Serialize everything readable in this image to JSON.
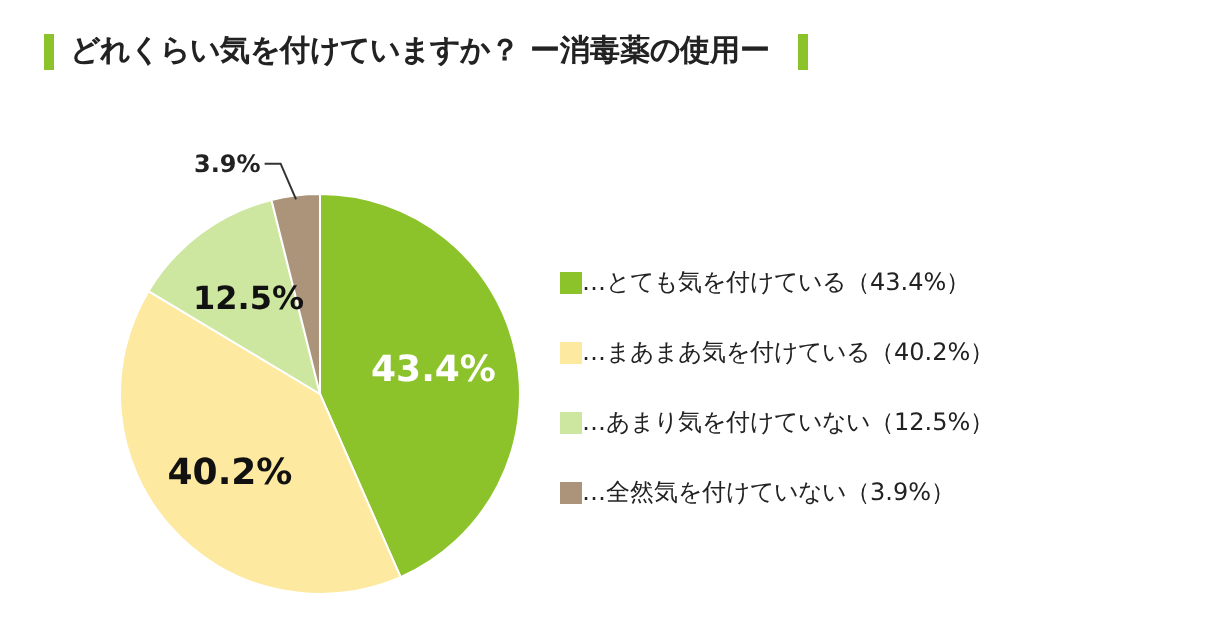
{
  "chart_data": {
    "type": "pie",
    "title": "どれくらい気を付けていますか？ ー消毒薬の使用ー",
    "categories": [
      "…とても気を付けている（43.4%）",
      "…まあまあ気を付けている（40.2%）",
      "…あまり気を付けていない（12.5%）",
      "…全然気を付けていない（3.9%）"
    ],
    "values": [
      43.4,
      40.2,
      12.5,
      3.9
    ],
    "colors": [
      "#8cc22a",
      "#fde9a0",
      "#cde6a0",
      "#ab9479"
    ],
    "value_labels": [
      "43.4%",
      "40.2%",
      "12.5%",
      "3.9%"
    ],
    "legend": "right"
  }
}
